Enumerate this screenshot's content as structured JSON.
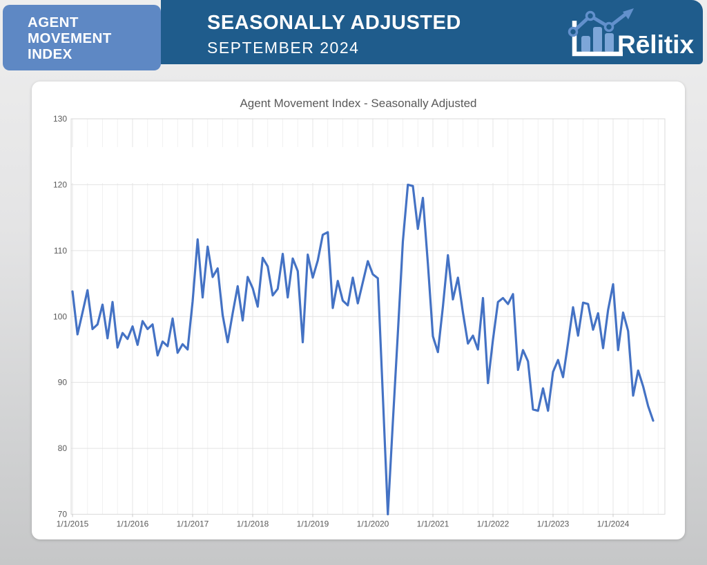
{
  "header": {
    "badge_lines": [
      "AGENT",
      "MOVEMENT",
      "INDEX"
    ],
    "title": "SEASONALLY ADJUSTED",
    "subtitle": "SEPTEMBER 2024",
    "brand": "Rēlitix",
    "colors": {
      "badge_bg": "#5e88c4",
      "band_bg": "#1f5c8c",
      "logo_bar": "#7da6d8",
      "logo_line": "#6290cc"
    }
  },
  "chart_data": {
    "type": "line",
    "title": "Agent Movement Index - Seasonally Adjusted",
    "series_name": "Agent Movement Index (seasonally adjusted)",
    "frequency": "monthly",
    "x_start": "2015-01",
    "x_end": "2024-09",
    "x_tick_labels": [
      "1/1/2015",
      "1/1/2016",
      "1/1/2017",
      "1/1/2018",
      "1/1/2019",
      "1/1/2020",
      "1/1/2021",
      "1/1/2022",
      "1/1/2023",
      "1/1/2024"
    ],
    "y_ticks": [
      70,
      80,
      90,
      100,
      110,
      120,
      130
    ],
    "ylim": [
      70,
      130
    ],
    "grid": "on",
    "legend": "none",
    "line_color": "#4472C4",
    "values": [
      103.8,
      97.3,
      100.6,
      104.0,
      98.1,
      98.8,
      101.8,
      96.7,
      102.2,
      95.3,
      97.5,
      96.6,
      98.5,
      95.7,
      99.3,
      98.1,
      98.8,
      94.1,
      96.2,
      95.5,
      99.7,
      94.5,
      95.8,
      95.0,
      102.3,
      111.7,
      102.9,
      110.6,
      106.0,
      107.3,
      100.2,
      96.1,
      100.5,
      104.6,
      99.4,
      106.0,
      104.3,
      101.5,
      108.9,
      107.6,
      103.2,
      104.2,
      109.5,
      102.9,
      108.8,
      106.9,
      96.1,
      109.4,
      105.9,
      108.5,
      112.4,
      112.8,
      101.3,
      105.4,
      102.4,
      101.7,
      105.9,
      102.0,
      105.2,
      108.4,
      106.4,
      105.8,
      88.0,
      70.0,
      84.0,
      97.5,
      111.4,
      120.0,
      119.8,
      113.3,
      118.0,
      108.0,
      97.0,
      94.6,
      101.5,
      109.3,
      102.6,
      105.9,
      100.6,
      95.9,
      97.1,
      95.0,
      102.8,
      89.9,
      96.5,
      102.2,
      102.8,
      101.9,
      103.4,
      91.9,
      94.9,
      93.2,
      85.9,
      85.7,
      89.1,
      85.7,
      91.6,
      93.4,
      90.8,
      96.0,
      101.4,
      97.1,
      102.1,
      101.9,
      98.0,
      100.5,
      95.2,
      101.0,
      104.9,
      94.9,
      100.6,
      97.8,
      88.0,
      91.8,
      89.4,
      86.4,
      84.2
    ]
  }
}
